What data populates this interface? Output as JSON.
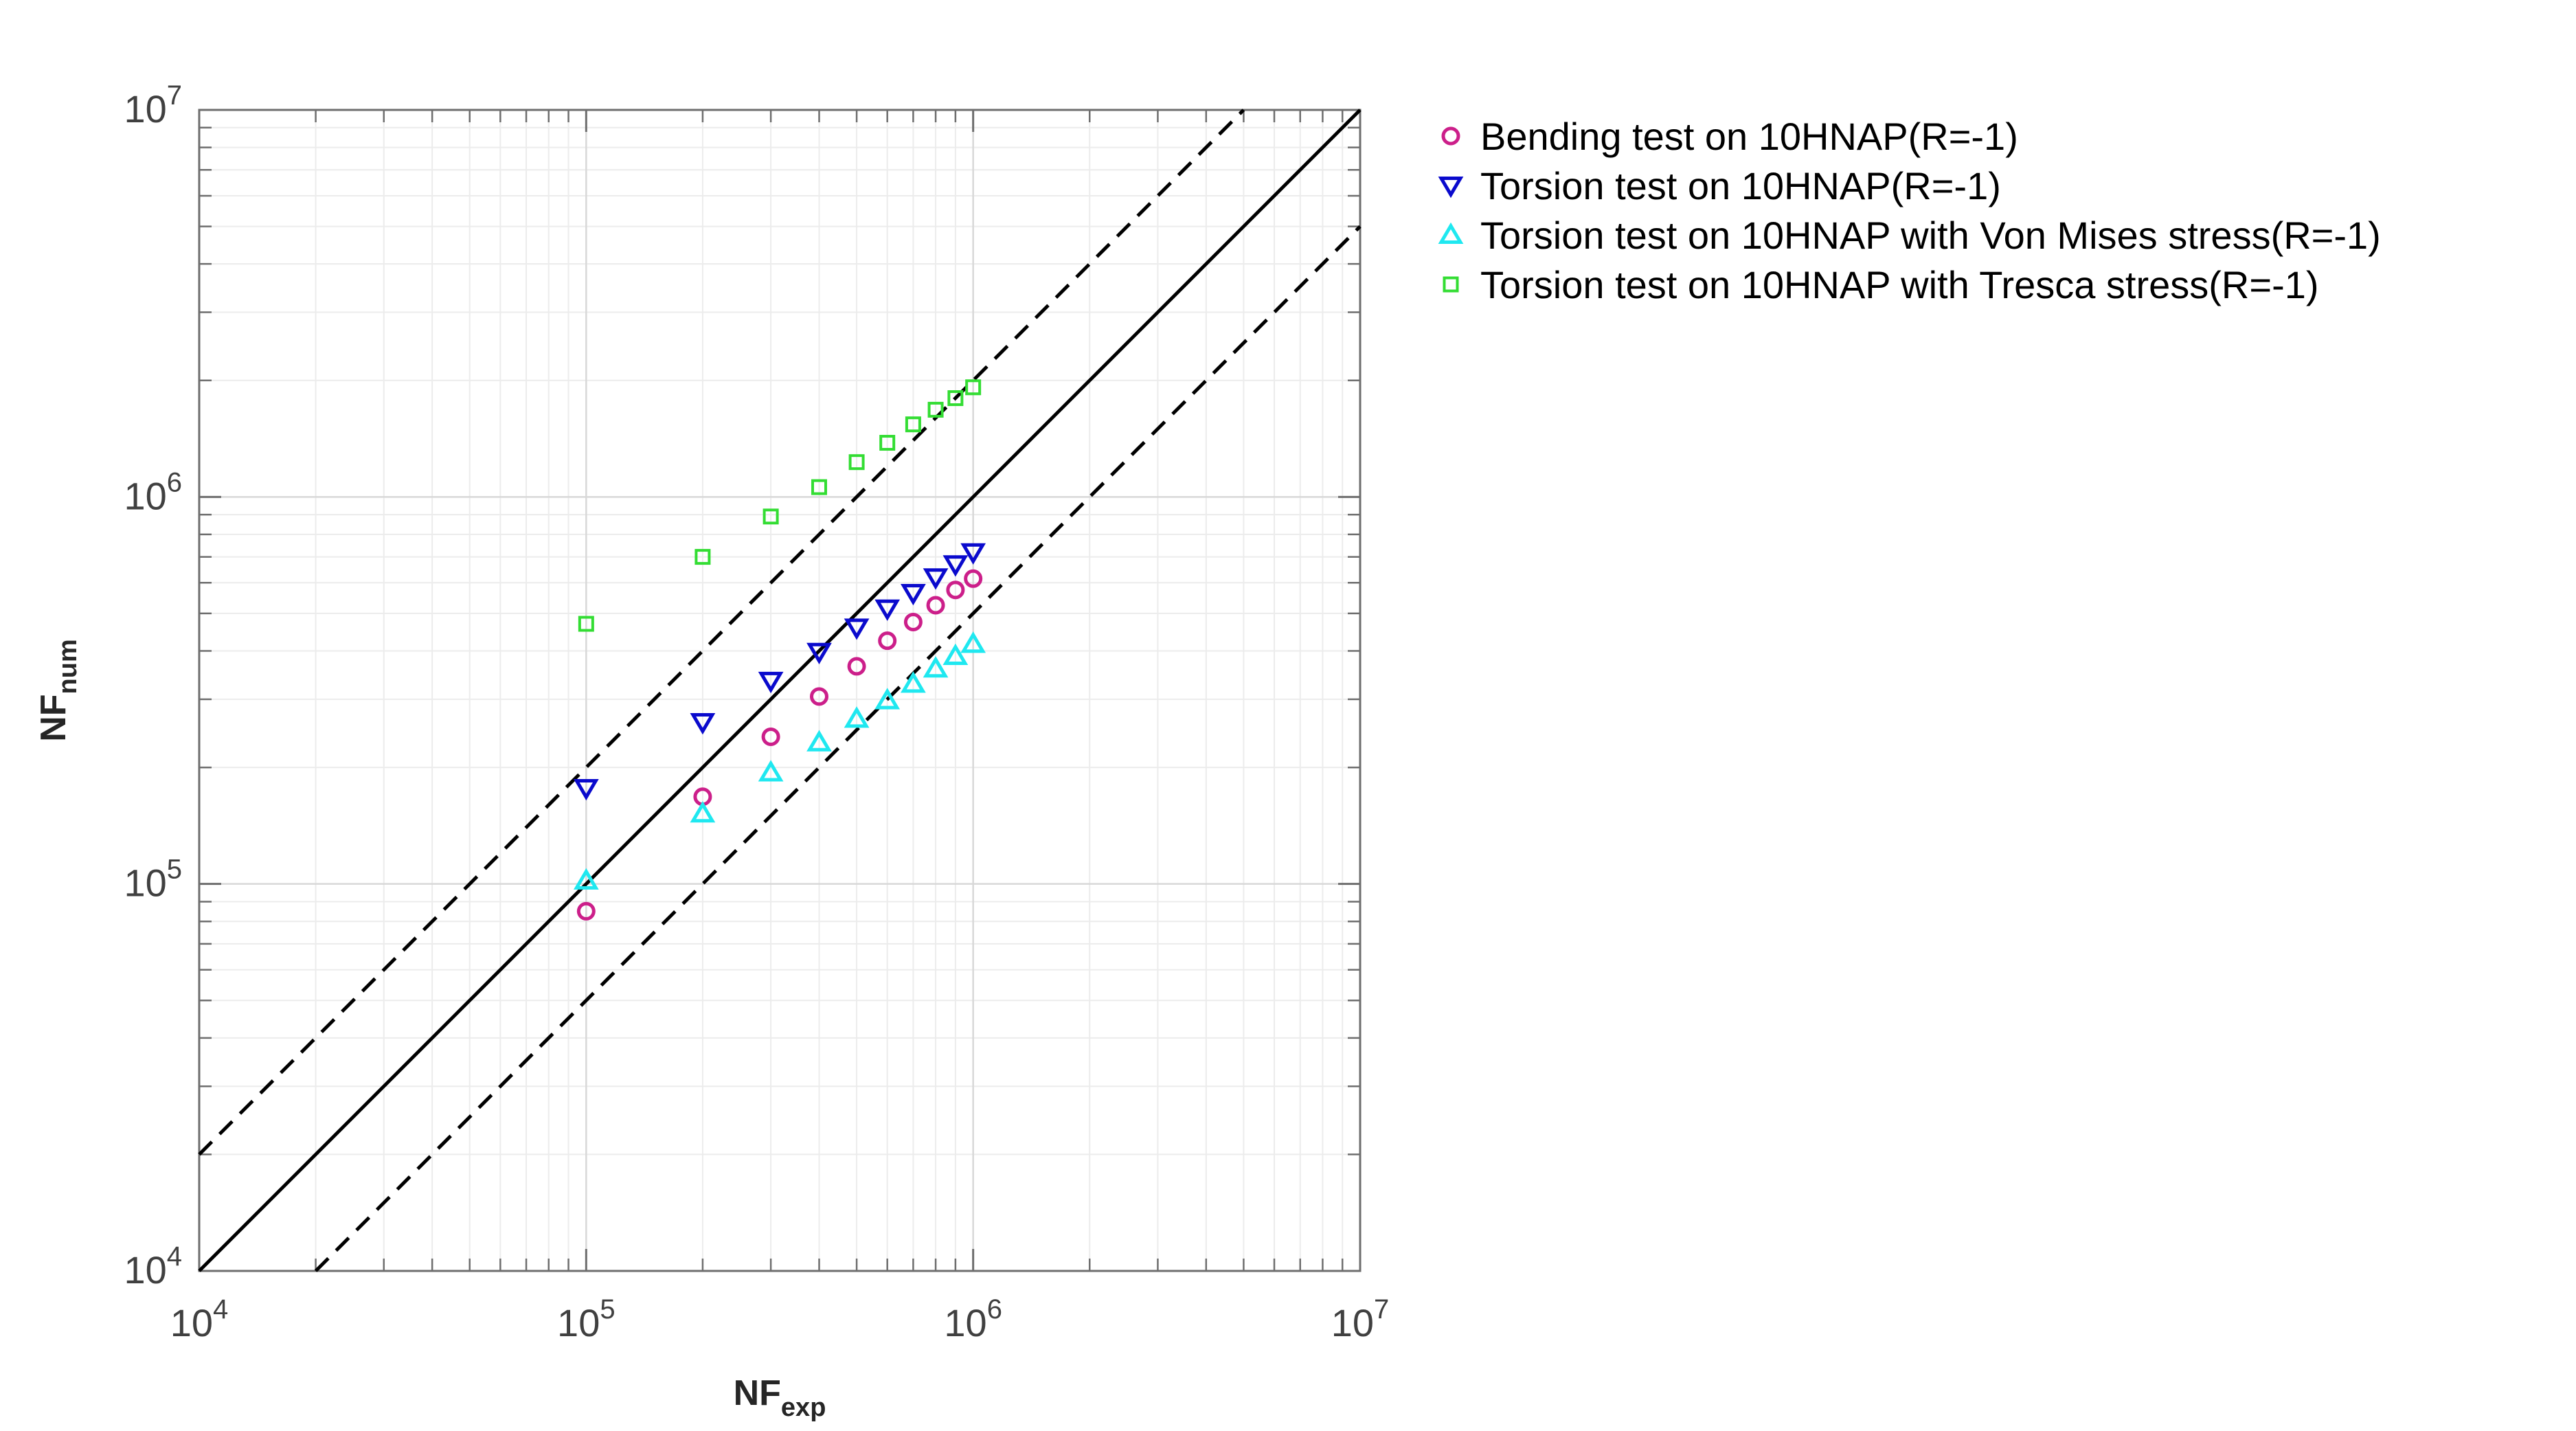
{
  "chart_data": {
    "type": "scatter",
    "title": "",
    "xlabel": {
      "main": "NF",
      "sub": "exp"
    },
    "ylabel": {
      "main": "NF",
      "sub": "num"
    },
    "xscale": "log",
    "yscale": "log",
    "xlim": [
      10000,
      10000000
    ],
    "ylim": [
      10000,
      10000000
    ],
    "grid": true,
    "legend_position": "outside-right-top",
    "xticks": [
      {
        "value": 10000,
        "base": "10",
        "exp": "4"
      },
      {
        "value": 100000,
        "base": "10",
        "exp": "5"
      },
      {
        "value": 1000000,
        "base": "10",
        "exp": "6"
      },
      {
        "value": 10000000,
        "base": "10",
        "exp": "7"
      }
    ],
    "yticks": [
      {
        "value": 10000,
        "base": "10",
        "exp": "4"
      },
      {
        "value": 100000,
        "base": "10",
        "exp": "5"
      },
      {
        "value": 1000000,
        "base": "10",
        "exp": "6"
      },
      {
        "value": 10000000,
        "base": "10",
        "exp": "7"
      }
    ],
    "reference_lines": [
      {
        "style": "solid",
        "x": [
          10000,
          10000000
        ],
        "y": [
          10000,
          10000000
        ]
      },
      {
        "style": "dashed",
        "x": [
          10000,
          5000000
        ],
        "y": [
          20000,
          10000000
        ]
      },
      {
        "style": "dashed",
        "x": [
          20000,
          10000000
        ],
        "y": [
          10000,
          5000000
        ]
      }
    ],
    "series": [
      {
        "name": "Bending test on 10HNAP(R=-1)",
        "marker": "circle",
        "color": "#cc1f8a",
        "x": [
          100000,
          200000,
          300000,
          400000,
          500000,
          600000,
          700000,
          800000,
          900000,
          1000000
        ],
        "y": [
          85000,
          168000,
          240000,
          305000,
          365000,
          425000,
          475000,
          525000,
          575000,
          615000
        ]
      },
      {
        "name": "Torsion test on 10HNAP(R=-1)",
        "marker": "triangle-down",
        "color": "#0a0acd",
        "x": [
          100000,
          200000,
          300000,
          400000,
          500000,
          600000,
          700000,
          800000,
          900000,
          1000000
        ],
        "y": [
          177000,
          262000,
          335000,
          398000,
          460000,
          515000,
          565000,
          620000,
          670000,
          720000
        ]
      },
      {
        "name": "Torsion test on 10HNAP with Von Mises stress(R=-1)",
        "marker": "triangle-up",
        "color": "#1fe8f0",
        "x": [
          100000,
          200000,
          300000,
          400000,
          500000,
          600000,
          700000,
          800000,
          900000,
          1000000
        ],
        "y": [
          102000,
          152000,
          194000,
          232000,
          267000,
          298000,
          329000,
          360000,
          388000,
          417000
        ]
      },
      {
        "name": "Torsion test on 10HNAP with Tresca stress(R=-1)",
        "marker": "square",
        "color": "#33dd33",
        "x": [
          100000,
          200000,
          300000,
          400000,
          500000,
          600000,
          700000,
          800000,
          900000,
          1000000
        ],
        "y": [
          470000,
          700000,
          890000,
          1060000,
          1230000,
          1380000,
          1540000,
          1680000,
          1800000,
          1920000
        ]
      }
    ]
  }
}
